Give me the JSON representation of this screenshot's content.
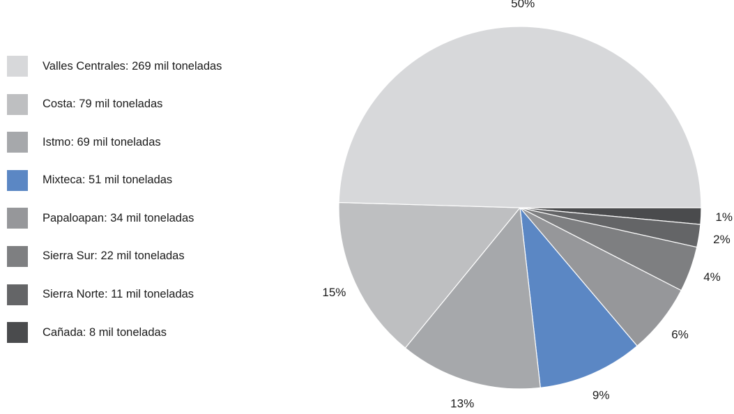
{
  "chart_data": {
    "type": "pie",
    "start_angle_deg": 0,
    "direction": "clockwise",
    "legend_position": "left",
    "slices": [
      {
        "legend": "Cañada: 8 mil toneladas",
        "value": 8,
        "percent_label": "1%",
        "color": "#4a4b4d",
        "label_color": "#1a1a1a"
      },
      {
        "legend": "Sierra Norte: 11 mil toneladas",
        "value": 11,
        "percent_label": "2%",
        "color": "#646567",
        "label_color": "#1a1a1a"
      },
      {
        "legend": "Sierra Sur: 22 mil toneladas",
        "value": 22,
        "percent_label": "4%",
        "color": "#7e7f81",
        "label_color": "#1a1a1a"
      },
      {
        "legend": "Papaloapan: 34 mil toneladas",
        "value": 34,
        "percent_label": "6%",
        "color": "#96979a",
        "label_color": "#1a1a1a"
      },
      {
        "legend": "Mixteca: 51 mil toneladas",
        "value": 51,
        "percent_label": "9%",
        "color": "#5b87c4",
        "label_color": "#5b87c4"
      },
      {
        "legend": "Istmo: 69 mil toneladas",
        "value": 69,
        "percent_label": "13%",
        "color": "#a6a8ab",
        "label_color": "#1a1a1a"
      },
      {
        "legend": "Costa: 79 mil toneladas",
        "value": 79,
        "percent_label": "15%",
        "color": "#bebfc1",
        "label_color": "#1a1a1a"
      },
      {
        "legend": "Valles Centrales: 269 mil toneladas",
        "value": 269,
        "percent_label": "50%",
        "color": "#d7d8da",
        "label_color": "#1a1a1a"
      }
    ],
    "legend_order": [
      7,
      6,
      5,
      4,
      3,
      2,
      1,
      0
    ]
  }
}
